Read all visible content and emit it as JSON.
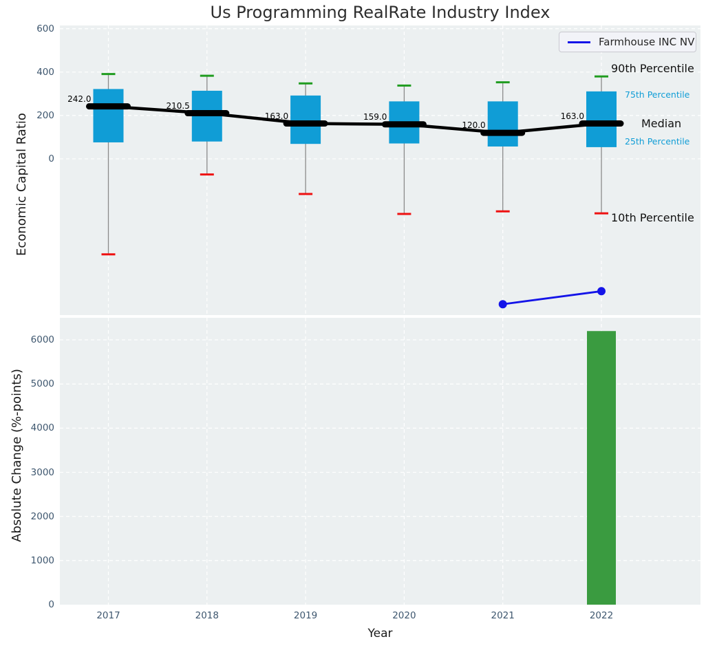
{
  "figure": {
    "colors": {
      "box_fill": "#109dd6",
      "whisker": "#8a8a8a",
      "cap_90th": "#1f9c1f",
      "cap_10th": "#ee1111",
      "median_line": "#000000",
      "company_line": "#1414e8",
      "bar_fill": "#3a9b40",
      "plot_background": "#ecf0f1",
      "gridline": "#ffffff",
      "tick_text": "#3d566e",
      "annotation_small_text": "#109dd6"
    }
  },
  "chart_data": [
    {
      "type": "box",
      "title": "Us Programming RealRate Industry Index",
      "ylabel": "Economic Capital Ratio",
      "categories": [
        "2017",
        "2018",
        "2019",
        "2020",
        "2021",
        "2022"
      ],
      "yticks": [
        600,
        400,
        200,
        0
      ],
      "ylim": [
        -720,
        615
      ],
      "grid": true,
      "boxes": [
        {
          "year": "2017",
          "p10": -440,
          "p25": 76,
          "median": 242.0,
          "p75": 322,
          "p90": 391,
          "median_label": "242.0"
        },
        {
          "year": "2018",
          "p10": -72,
          "p25": 80,
          "median": 210.5,
          "p75": 314,
          "p90": 383,
          "median_label": "210.5"
        },
        {
          "year": "2019",
          "p10": -162,
          "p25": 69,
          "median": 163.0,
          "p75": 292,
          "p90": 348,
          "median_label": "163.0"
        },
        {
          "year": "2020",
          "p10": -254,
          "p25": 71,
          "median": 159.0,
          "p75": 265,
          "p90": 338,
          "median_label": "159.0"
        },
        {
          "year": "2021",
          "p10": -242,
          "p25": 57,
          "median": 120.0,
          "p75": 265,
          "p90": 353,
          "median_label": "120.0"
        },
        {
          "year": "2022",
          "p10": -251,
          "p25": 54,
          "median": 163.0,
          "p75": 311,
          "p90": 380,
          "median_label": "163.0"
        }
      ],
      "company_line": {
        "name": "Farmhouse INC NV",
        "points": [
          {
            "x": "2021",
            "y": -670
          },
          {
            "x": "2022",
            "y": -610
          }
        ]
      },
      "percentile_labels": [
        "90th Percentile",
        "75th Percentile",
        "Median",
        "25th Percentile",
        "10th Percentile"
      ],
      "legend_position": "upper right"
    },
    {
      "type": "bar",
      "ylabel": "Absolute Change (%-points)",
      "xlabel": "Year",
      "categories": [
        "2017",
        "2018",
        "2019",
        "2020",
        "2021",
        "2022"
      ],
      "values": [
        0,
        0,
        0,
        0,
        0,
        6200
      ],
      "yticks": [
        0,
        1000,
        2000,
        3000,
        4000,
        5000,
        6000
      ],
      "ylim": [
        0,
        6500
      ],
      "grid": true
    }
  ]
}
